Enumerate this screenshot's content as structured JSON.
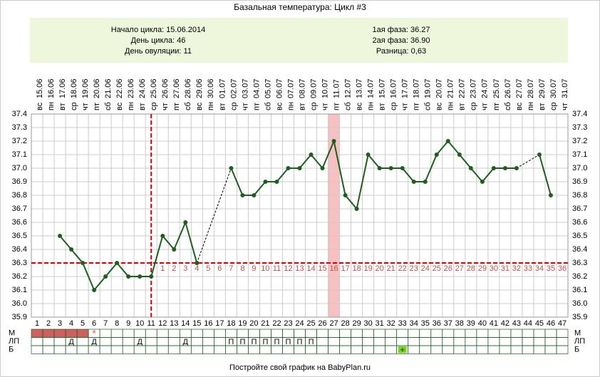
{
  "chart_data": {
    "type": "line",
    "title": "Базальная температура: Цикл #3",
    "info_left": [
      "Начало цикла: 15.06.2014",
      "День цикла: 46",
      "День овуляции: 11"
    ],
    "info_right": [
      "1ая фаза: 36.27",
      "2ая фаза: 36.90",
      "Разница: 0,63"
    ],
    "footer": "Постройте свой график на BabyPlan.ru",
    "categories": [
      1,
      2,
      3,
      4,
      5,
      6,
      7,
      8,
      9,
      10,
      11,
      12,
      13,
      14,
      15,
      16,
      17,
      18,
      19,
      20,
      21,
      22,
      23,
      24,
      25,
      26,
      27,
      28,
      29,
      30,
      31,
      32,
      33,
      34,
      35,
      36,
      37,
      38,
      39,
      40,
      41,
      42,
      43,
      44,
      45,
      46,
      47
    ],
    "weekdays": [
      "вс",
      "пн",
      "вт",
      "ср",
      "чт",
      "пт",
      "сб",
      "вс",
      "пн",
      "вт",
      "ср",
      "чт",
      "пт",
      "сб",
      "вс",
      "пн",
      "вт",
      "ср",
      "чт",
      "пт",
      "сб",
      "вс",
      "пн",
      "вт",
      "ср",
      "чт",
      "пт",
      "сб",
      "вс",
      "пн",
      "вт",
      "ср",
      "чт",
      "пт",
      "сб",
      "вс",
      "пн",
      "вт",
      "ср",
      "чт",
      "пт",
      "сб",
      "вс",
      "пн",
      "вт",
      "ср",
      "чт"
    ],
    "dates": [
      "15.06",
      "16.06",
      "17.06",
      "18.06",
      "19.06",
      "20.06",
      "21.06",
      "22.06",
      "23.06",
      "24.06",
      "25.06",
      "26.06",
      "27.06",
      "28.06",
      "29.06",
      "30.06",
      "01.07",
      "02.07",
      "03.07",
      "04.07",
      "05.07",
      "06.07",
      "07.07",
      "08.07",
      "09.07",
      "10.07",
      "11.07",
      "12.07",
      "13.07",
      "14.07",
      "15.07",
      "16.07",
      "17.07",
      "18.07",
      "19.07",
      "20.07",
      "21.07",
      "22.07",
      "23.07",
      "24.07",
      "25.07",
      "26.07",
      "27.07",
      "28.07",
      "29.07",
      "30.07",
      "31.07"
    ],
    "series": [
      {
        "name": "Температура",
        "color": "#1e5e1e",
        "values": [
          null,
          null,
          36.5,
          36.4,
          36.3,
          36.1,
          36.2,
          36.3,
          36.2,
          36.2,
          36.2,
          36.5,
          36.4,
          36.6,
          36.3,
          null,
          null,
          37.0,
          36.8,
          36.8,
          36.9,
          36.9,
          37.0,
          37.0,
          37.1,
          37.0,
          37.2,
          36.8,
          36.7,
          37.1,
          37.0,
          37.0,
          37.0,
          36.9,
          36.9,
          37.1,
          37.2,
          37.1,
          37.0,
          36.9,
          37.0,
          37.0,
          37.0,
          null,
          37.1,
          36.8,
          null
        ]
      }
    ],
    "ylim": [
      35.9,
      37.4
    ],
    "yticks": [
      37.4,
      37.3,
      37.2,
      37.1,
      {
        "value": 37,
        "label": "37.0"
      },
      36.9,
      36.8,
      36.7,
      36.6,
      36.5,
      36.4,
      36.3,
      36.2,
      36.1,
      {
        "value": 36,
        "label": "36.0"
      },
      35.9
    ],
    "grid": true,
    "cover_line": 36.3,
    "ovulation_line_day": 11,
    "highlight_day": 27,
    "phase2_start_day": 12,
    "phase2_day_labels": [
      1,
      2,
      3,
      4,
      5,
      6,
      7,
      8,
      9,
      10,
      11,
      12,
      13,
      14,
      15,
      16,
      17,
      18,
      19,
      20,
      21,
      22,
      23,
      24,
      25,
      26,
      27,
      28,
      29,
      30,
      31,
      32,
      33,
      34,
      35,
      36
    ],
    "rows": [
      {
        "label": "М",
        "fill_days": [
          1,
          2,
          3,
          4,
          5
        ],
        "marks": [
          {
            "day": 6,
            "text": "*"
          }
        ]
      },
      {
        "label": "ЛП",
        "fill_days": [],
        "marks": [
          {
            "day": 4,
            "text": "Д"
          },
          {
            "day": 6,
            "text": "Д"
          },
          {
            "day": 10,
            "text": "Д"
          },
          {
            "day": 14,
            "text": "Д"
          },
          {
            "day": 18,
            "text": "П"
          },
          {
            "day": 19,
            "text": "П"
          },
          {
            "day": 20,
            "text": "П"
          },
          {
            "day": 21,
            "text": "П"
          },
          {
            "day": 22,
            "text": "П"
          },
          {
            "day": 23,
            "text": "П"
          },
          {
            "day": 24,
            "text": "П"
          },
          {
            "day": 25,
            "text": "П"
          }
        ]
      },
      {
        "label": "Б",
        "fill_days": [],
        "marks": [
          {
            "day": 33,
            "text": "+"
          }
        ]
      }
    ]
  }
}
